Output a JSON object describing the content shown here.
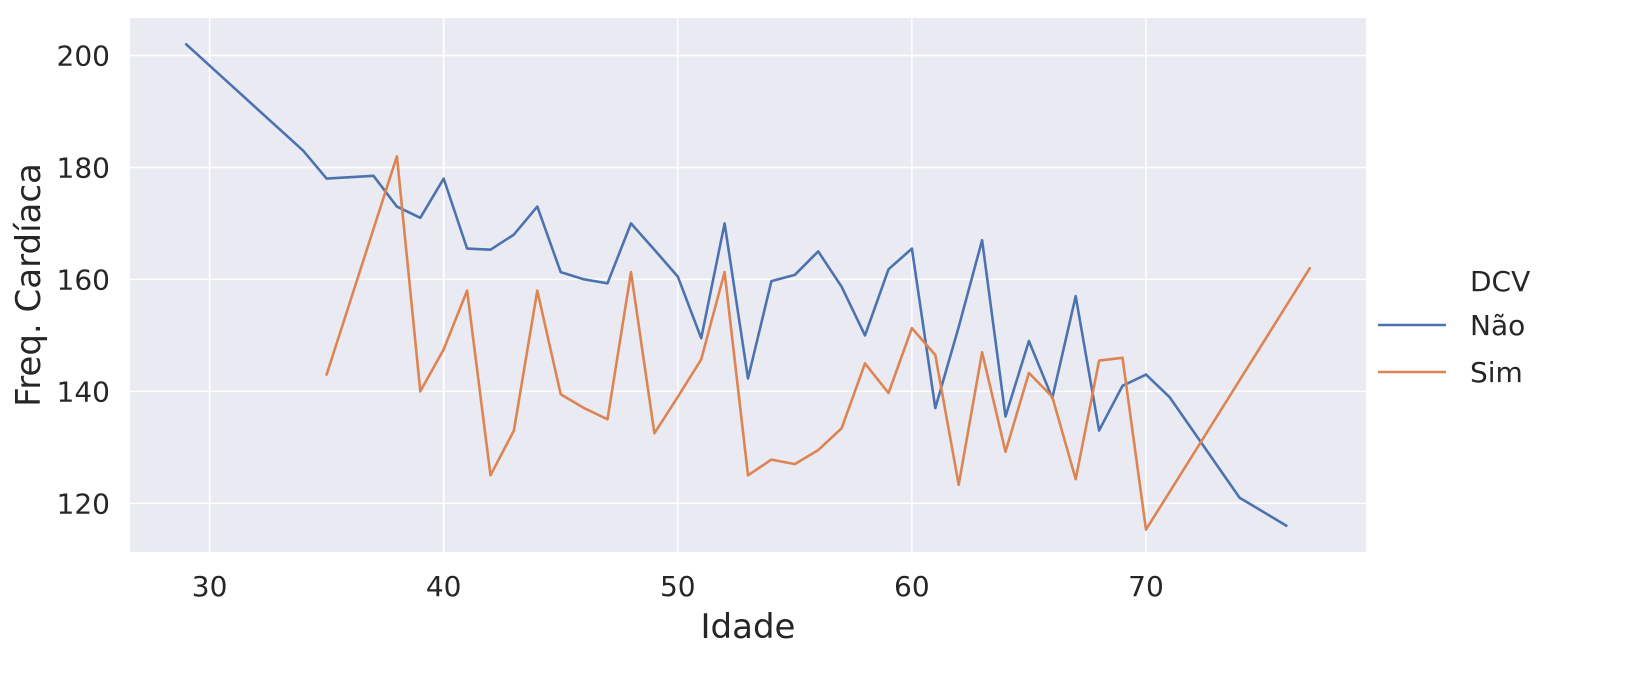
{
  "chart_data": {
    "type": "line",
    "title": "",
    "xlabel": "Idade",
    "ylabel": "Freq. Cardíaca",
    "xlim": [
      26.6,
      79.4
    ],
    "ylim": [
      111.3,
      206.7
    ],
    "xticks": [
      30,
      40,
      50,
      60,
      70
    ],
    "yticks": [
      120,
      140,
      160,
      180,
      200
    ],
    "grid": true,
    "legend": {
      "title": "DCV",
      "placement": "right"
    },
    "series": [
      {
        "name": "Não",
        "color": "#4c72b0",
        "x": [
          29,
          34,
          35,
          37,
          38,
          39,
          40,
          41,
          42,
          43,
          44,
          45,
          46,
          47,
          48,
          49,
          50,
          51,
          52,
          53,
          54,
          55,
          56,
          57,
          58,
          59,
          60,
          61,
          62,
          63,
          64,
          65,
          66,
          67,
          68,
          69,
          70,
          71,
          74,
          76
        ],
        "y": [
          202,
          183,
          178,
          178.5,
          173,
          171,
          178,
          165.5,
          165.3,
          168,
          173,
          161.3,
          160,
          159.3,
          170,
          165.3,
          160.5,
          149.5,
          170,
          142.3,
          159.7,
          160.8,
          165,
          158.7,
          150,
          161.8,
          165.5,
          137,
          151.5,
          167,
          135.5,
          149,
          138.8,
          157,
          133,
          141,
          143,
          139,
          121,
          116
        ]
      },
      {
        "name": "Sim",
        "color": "#dd8452",
        "x": [
          35,
          38,
          39,
          40,
          41,
          42,
          43,
          44,
          45,
          46,
          47,
          48,
          49,
          50,
          51,
          52,
          53,
          54,
          55,
          56,
          57,
          58,
          59,
          60,
          61,
          62,
          63,
          64,
          65,
          66,
          67,
          68,
          69,
          70,
          77
        ],
        "y": [
          143,
          182,
          140,
          147.5,
          158,
          125,
          133,
          158,
          139.5,
          137,
          135,
          161.3,
          132.5,
          139,
          145.7,
          161.3,
          125,
          127.8,
          127,
          129.5,
          133.4,
          145,
          139.7,
          151.3,
          146.5,
          123.3,
          147,
          129.2,
          143.3,
          139,
          124.3,
          145.5,
          146,
          115.3,
          162
        ]
      }
    ]
  }
}
